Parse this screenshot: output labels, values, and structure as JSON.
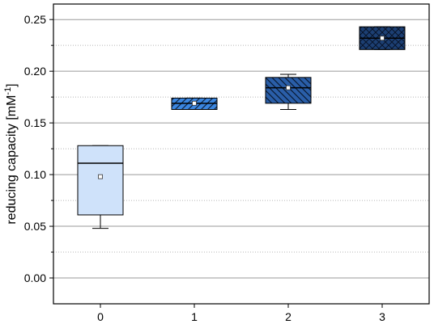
{
  "chart_data": {
    "type": "box",
    "xlabel": "",
    "ylabel": "reducing capacity [mM",
    "ylabel_sup": "-1",
    "ylabel_close": "]",
    "ylim": [
      -0.025,
      0.265
    ],
    "yticks": [
      0.0,
      0.05,
      0.1,
      0.15,
      0.2,
      0.25
    ],
    "ytick_labels": [
      "0.00",
      "0.05",
      "0.10",
      "0.15",
      "0.20",
      "0.25"
    ],
    "minor_grid": [
      0.025,
      0.075,
      0.125,
      0.175,
      0.225
    ],
    "grid": true,
    "categories": [
      "0",
      "1",
      "2",
      "3"
    ],
    "boxes": [
      {
        "category": "0",
        "whisker_low": 0.048,
        "q1": 0.061,
        "median": 0.111,
        "q3": 0.128,
        "whisker_high": 0.128,
        "mean": 0.098,
        "fill": "#cfe2fa",
        "hatch": "none"
      },
      {
        "category": "1",
        "whisker_low": 0.163,
        "q1": 0.163,
        "median": 0.169,
        "q3": 0.174,
        "whisker_high": 0.174,
        "mean": 0.169,
        "fill": "#3b86e0",
        "hatch": "diagonal"
      },
      {
        "category": "2",
        "whisker_low": 0.163,
        "q1": 0.169,
        "median": 0.184,
        "q3": 0.194,
        "whisker_high": 0.197,
        "mean": 0.184,
        "fill": "#2a5ea8",
        "hatch": "back-diagonal"
      },
      {
        "category": "3",
        "whisker_low": 0.221,
        "q1": 0.221,
        "median": 0.232,
        "q3": 0.243,
        "whisker_high": 0.243,
        "mean": 0.232,
        "fill": "#1c3f73",
        "hatch": "crosshatch"
      }
    ]
  }
}
